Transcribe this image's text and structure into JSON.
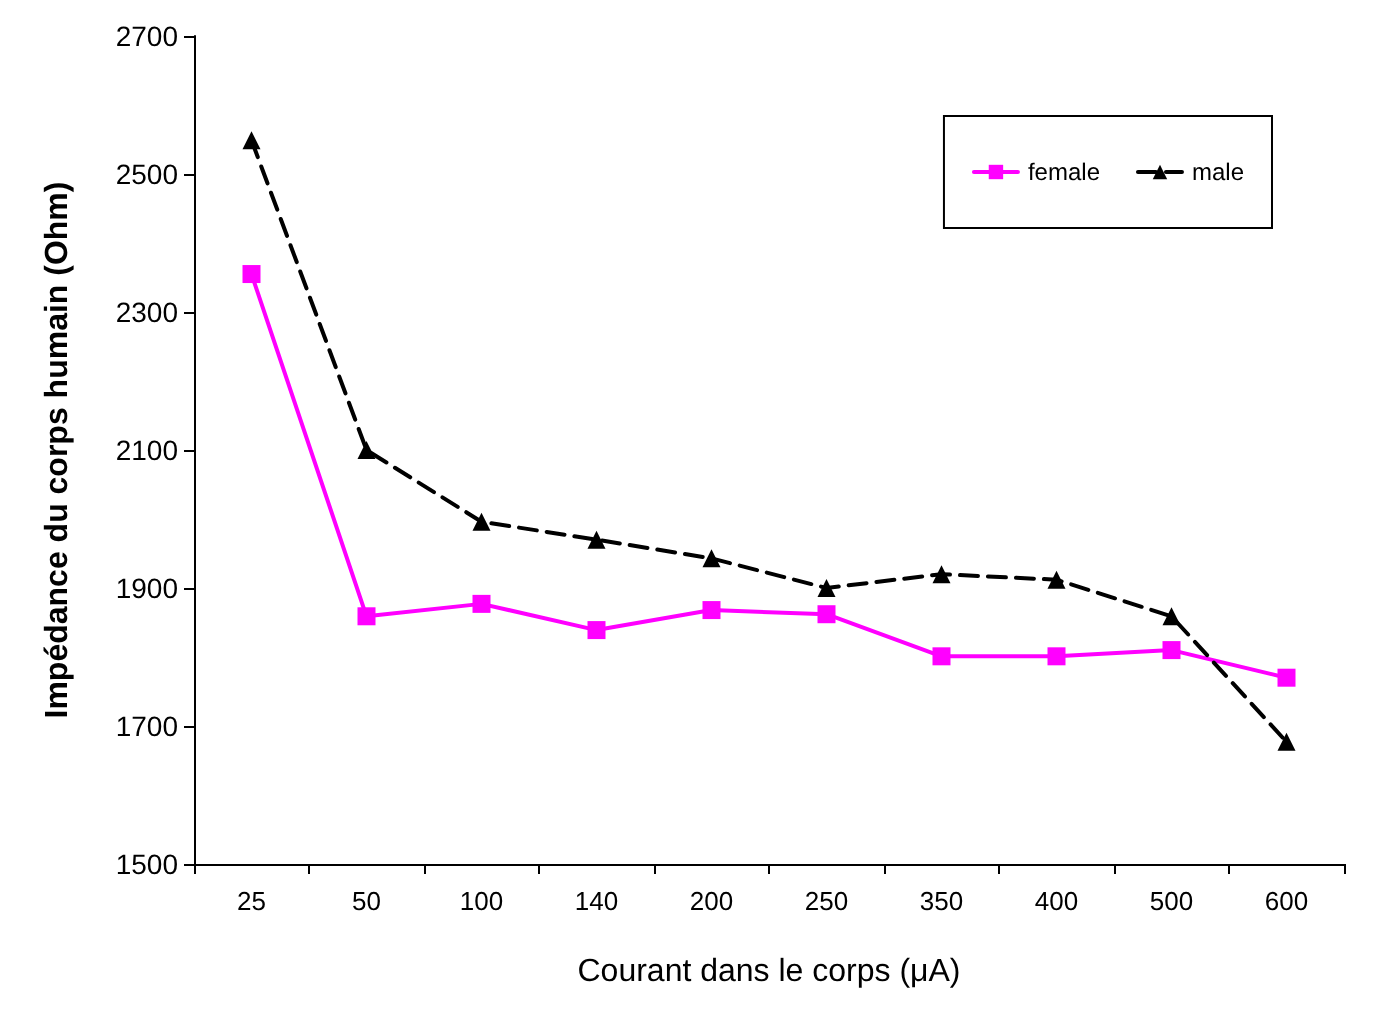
{
  "chart_data": {
    "type": "line",
    "xlabel": "Courant dans le corps (μA)",
    "ylabel": "Impédance du corps humain (Ohm)",
    "categories": [
      "25",
      "50",
      "100",
      "140",
      "200",
      "250",
      "350",
      "400",
      "500",
      "600"
    ],
    "series": [
      {
        "name": "female",
        "color": "#ff00ff",
        "marker": "square",
        "line_style": "solid",
        "values": [
          2355,
          1859,
          1877,
          1839,
          1868,
          1862,
          1801,
          1801,
          1810,
          1770
        ]
      },
      {
        "name": "male",
        "color": "#000000",
        "marker": "triangle",
        "line_style": "dashed",
        "values": [
          2549,
          2100,
          1996,
          1970,
          1943,
          1900,
          1920,
          1912,
          1859,
          1677
        ]
      }
    ],
    "ylim": [
      1500,
      2700
    ],
    "yticks": [
      1500,
      1700,
      1900,
      2100,
      2300,
      2500,
      2700
    ],
    "grid": false,
    "legend": "top right"
  }
}
